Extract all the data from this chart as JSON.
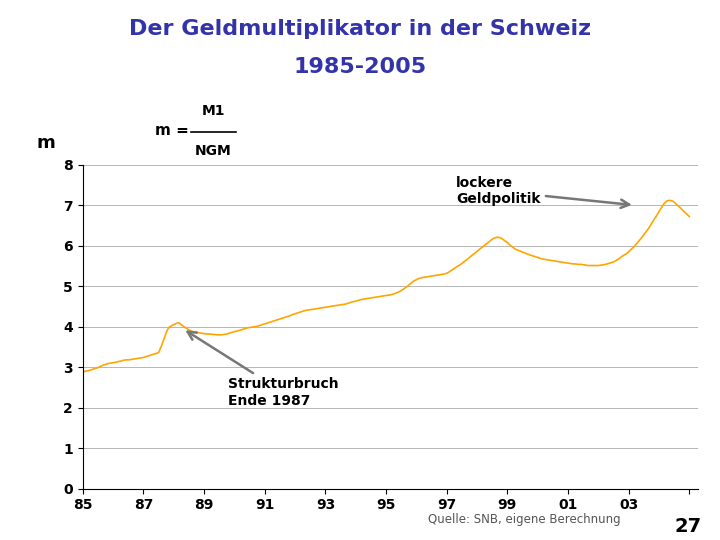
{
  "title_line1": "Der Geldmultiplikator in der Schweiz",
  "title_line2": "1985-2005",
  "title_color": "#3333aa",
  "bg_color": "#ffffff",
  "plot_bg_color": "#ffffff",
  "line_color": "#FFA500",
  "ylim": [
    0,
    8
  ],
  "yticks": [
    0,
    1,
    2,
    3,
    4,
    5,
    6,
    7,
    8
  ],
  "xticks": [
    1985,
    1987,
    1989,
    1991,
    1993,
    1995,
    1997,
    1999,
    2001,
    2003,
    2005
  ],
  "xlabels": [
    "85",
    "87",
    "89",
    "91",
    "93",
    "95",
    "97",
    "99",
    "01",
    "03",
    ""
  ],
  "source_text": "Quelle: SNB, eigene Berechnung",
  "page_number": "27",
  "data_x": [
    1985.0,
    1985.08,
    1985.17,
    1985.25,
    1985.33,
    1985.42,
    1985.5,
    1985.58,
    1985.67,
    1985.75,
    1985.83,
    1985.92,
    1986.0,
    1986.08,
    1986.17,
    1986.25,
    1986.33,
    1986.42,
    1986.5,
    1986.58,
    1986.67,
    1986.75,
    1986.83,
    1986.92,
    1987.0,
    1987.08,
    1987.17,
    1987.25,
    1987.33,
    1987.42,
    1987.5,
    1987.58,
    1987.67,
    1987.75,
    1987.83,
    1987.92,
    1988.0,
    1988.08,
    1988.17,
    1988.25,
    1988.33,
    1988.42,
    1988.5,
    1988.58,
    1988.67,
    1988.75,
    1988.83,
    1988.92,
    1989.0,
    1989.08,
    1989.17,
    1989.25,
    1989.33,
    1989.42,
    1989.5,
    1989.58,
    1989.67,
    1989.75,
    1989.83,
    1989.92,
    1990.0,
    1990.08,
    1990.17,
    1990.25,
    1990.33,
    1990.42,
    1990.5,
    1990.58,
    1990.67,
    1990.75,
    1990.83,
    1990.92,
    1991.0,
    1991.08,
    1991.17,
    1991.25,
    1991.33,
    1991.42,
    1991.5,
    1991.58,
    1991.67,
    1991.75,
    1991.83,
    1991.92,
    1992.0,
    1992.08,
    1992.17,
    1992.25,
    1992.33,
    1992.42,
    1992.5,
    1992.58,
    1992.67,
    1992.75,
    1992.83,
    1992.92,
    1993.0,
    1993.08,
    1993.17,
    1993.25,
    1993.33,
    1993.42,
    1993.5,
    1993.58,
    1993.67,
    1993.75,
    1993.83,
    1993.92,
    1994.0,
    1994.08,
    1994.17,
    1994.25,
    1994.33,
    1994.42,
    1994.5,
    1994.58,
    1994.67,
    1994.75,
    1994.83,
    1994.92,
    1995.0,
    1995.08,
    1995.17,
    1995.25,
    1995.33,
    1995.42,
    1995.5,
    1995.58,
    1995.67,
    1995.75,
    1995.83,
    1995.92,
    1996.0,
    1996.08,
    1996.17,
    1996.25,
    1996.33,
    1996.42,
    1996.5,
    1996.58,
    1996.67,
    1996.75,
    1996.83,
    1996.92,
    1997.0,
    1997.08,
    1997.17,
    1997.25,
    1997.33,
    1997.42,
    1997.5,
    1997.58,
    1997.67,
    1997.75,
    1997.83,
    1997.92,
    1998.0,
    1998.08,
    1998.17,
    1998.25,
    1998.33,
    1998.42,
    1998.5,
    1998.58,
    1998.67,
    1998.75,
    1998.83,
    1998.92,
    1999.0,
    1999.08,
    1999.17,
    1999.25,
    1999.33,
    1999.42,
    1999.5,
    1999.58,
    1999.67,
    1999.75,
    1999.83,
    1999.92,
    2000.0,
    2000.08,
    2000.17,
    2000.25,
    2000.33,
    2000.42,
    2000.5,
    2000.58,
    2000.67,
    2000.75,
    2000.83,
    2000.92,
    2001.0,
    2001.08,
    2001.17,
    2001.25,
    2001.33,
    2001.42,
    2001.5,
    2001.58,
    2001.67,
    2001.75,
    2001.83,
    2001.92,
    2002.0,
    2002.08,
    2002.17,
    2002.25,
    2002.33,
    2002.42,
    2002.5,
    2002.58,
    2002.67,
    2002.75,
    2002.83,
    2002.92,
    2003.0,
    2003.08,
    2003.17,
    2003.25,
    2003.33,
    2003.42,
    2003.5,
    2003.58,
    2003.67,
    2003.75,
    2003.83,
    2003.92,
    2004.0,
    2004.08,
    2004.17,
    2004.25,
    2004.33,
    2004.42,
    2004.5,
    2004.58,
    2004.67,
    2004.75,
    2004.83,
    2004.92,
    2005.0
  ],
  "data_y": [
    2.88,
    2.9,
    2.91,
    2.93,
    2.95,
    2.97,
    2.99,
    3.02,
    3.05,
    3.07,
    3.09,
    3.1,
    3.11,
    3.12,
    3.14,
    3.15,
    3.17,
    3.18,
    3.18,
    3.19,
    3.2,
    3.21,
    3.22,
    3.23,
    3.24,
    3.26,
    3.28,
    3.3,
    3.32,
    3.34,
    3.36,
    3.5,
    3.68,
    3.85,
    3.98,
    4.02,
    4.05,
    4.08,
    4.1,
    4.05,
    4.0,
    3.96,
    3.92,
    3.89,
    3.87,
    3.86,
    3.85,
    3.84,
    3.83,
    3.82,
    3.82,
    3.81,
    3.81,
    3.8,
    3.8,
    3.8,
    3.81,
    3.82,
    3.84,
    3.86,
    3.88,
    3.89,
    3.91,
    3.93,
    3.95,
    3.97,
    3.98,
    3.99,
    4.0,
    4.01,
    4.03,
    4.05,
    4.07,
    4.09,
    4.11,
    4.13,
    4.15,
    4.17,
    4.19,
    4.21,
    4.23,
    4.25,
    4.27,
    4.3,
    4.32,
    4.34,
    4.36,
    4.38,
    4.4,
    4.41,
    4.42,
    4.43,
    4.44,
    4.45,
    4.46,
    4.47,
    4.48,
    4.49,
    4.5,
    4.51,
    4.52,
    4.53,
    4.54,
    4.55,
    4.56,
    4.58,
    4.6,
    4.62,
    4.63,
    4.65,
    4.67,
    4.68,
    4.69,
    4.7,
    4.71,
    4.72,
    4.73,
    4.74,
    4.75,
    4.76,
    4.77,
    4.78,
    4.79,
    4.81,
    4.83,
    4.86,
    4.89,
    4.93,
    4.98,
    5.03,
    5.08,
    5.13,
    5.16,
    5.19,
    5.21,
    5.22,
    5.23,
    5.24,
    5.25,
    5.26,
    5.27,
    5.28,
    5.29,
    5.3,
    5.32,
    5.35,
    5.4,
    5.44,
    5.48,
    5.52,
    5.56,
    5.61,
    5.66,
    5.71,
    5.76,
    5.81,
    5.86,
    5.91,
    5.96,
    6.01,
    6.06,
    6.11,
    6.16,
    6.19,
    6.21,
    6.2,
    6.17,
    6.12,
    6.08,
    6.02,
    5.97,
    5.92,
    5.89,
    5.87,
    5.84,
    5.82,
    5.79,
    5.77,
    5.75,
    5.73,
    5.71,
    5.69,
    5.67,
    5.66,
    5.65,
    5.64,
    5.63,
    5.62,
    5.61,
    5.6,
    5.59,
    5.58,
    5.57,
    5.56,
    5.55,
    5.55,
    5.54,
    5.54,
    5.53,
    5.52,
    5.51,
    5.51,
    5.51,
    5.51,
    5.51,
    5.52,
    5.53,
    5.54,
    5.56,
    5.58,
    5.6,
    5.63,
    5.67,
    5.72,
    5.76,
    5.8,
    5.85,
    5.91,
    5.97,
    6.04,
    6.11,
    6.19,
    6.27,
    6.35,
    6.44,
    6.54,
    6.64,
    6.74,
    6.84,
    6.94,
    7.04,
    7.1,
    7.12,
    7.11,
    7.08,
    7.02,
    6.96,
    6.9,
    6.84,
    6.78,
    6.72
  ]
}
